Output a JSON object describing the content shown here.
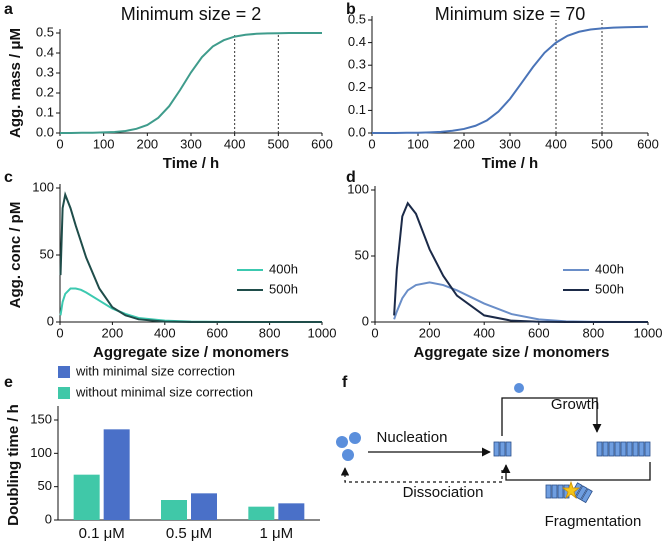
{
  "chart_data": [
    {
      "type": "line",
      "panel": "a",
      "title": "Minimum size = 2",
      "xlabel": "Time / h",
      "ylabel": "Agg. mass / μM",
      "x": [
        0,
        25,
        50,
        75,
        100,
        125,
        150,
        175,
        200,
        225,
        250,
        275,
        300,
        325,
        350,
        375,
        400,
        425,
        450,
        475,
        500,
        525,
        550,
        575,
        600
      ],
      "values": [
        0,
        0,
        0.001,
        0.001,
        0.003,
        0.005,
        0.01,
        0.021,
        0.04,
        0.076,
        0.134,
        0.215,
        0.303,
        0.379,
        0.433,
        0.464,
        0.482,
        0.491,
        0.496,
        0.498,
        0.499,
        0.5,
        0.5,
        0.5,
        0.5
      ],
      "color": "#3f9c8c",
      "xlim": [
        0,
        600
      ],
      "xticks": [
        0,
        100,
        200,
        300,
        400,
        500,
        600
      ],
      "ylim": [
        0,
        0.5
      ],
      "yticks": [
        {
          "value": 0,
          "label": "0.0"
        },
        0.1,
        0.2,
        0.3,
        0.4,
        0.5
      ],
      "vlines": [
        400,
        500
      ]
    },
    {
      "type": "line",
      "panel": "b",
      "title": "Minimum size = 70",
      "xlabel": "Time / h",
      "x": [
        0,
        25,
        50,
        75,
        100,
        125,
        150,
        175,
        200,
        225,
        250,
        275,
        300,
        325,
        350,
        375,
        400,
        425,
        450,
        475,
        500,
        525,
        550,
        575,
        600
      ],
      "values": [
        0,
        0,
        0,
        0.001,
        0.001,
        0.003,
        0.005,
        0.01,
        0.018,
        0.032,
        0.056,
        0.095,
        0.151,
        0.221,
        0.292,
        0.355,
        0.4,
        0.43,
        0.448,
        0.458,
        0.463,
        0.466,
        0.468,
        0.469,
        0.47
      ],
      "color": "#4a74b8",
      "xlim": [
        0,
        600
      ],
      "xticks": [
        0,
        100,
        200,
        300,
        400,
        500,
        600
      ],
      "ylim": [
        0,
        0.5
      ],
      "yticks": [
        {
          "value": 0,
          "label": "0.0"
        },
        0.1,
        0.2,
        0.3,
        0.4,
        0.5
      ],
      "vlines": [
        400,
        500
      ]
    },
    {
      "type": "line",
      "panel": "c",
      "xlabel": "Aggregate size / monomers",
      "ylabel": "Agg. conc / pM",
      "x": [
        2,
        10,
        20,
        40,
        60,
        80,
        100,
        150,
        200,
        250,
        300,
        400,
        500,
        600,
        800,
        1000
      ],
      "series": [
        {
          "name": "400h",
          "color": "#3cc9b0",
          "values": [
            5,
            15,
            21,
            25,
            25,
            24,
            22,
            16,
            10,
            6,
            3,
            1,
            0.3,
            0.1,
            0,
            0
          ]
        },
        {
          "name": "500h",
          "color": "#1f4d4a",
          "values": [
            35,
            85,
            95,
            85,
            72,
            60,
            48,
            25,
            11,
            5,
            2,
            0.3,
            0,
            0,
            0,
            0
          ]
        }
      ],
      "xlim": [
        0,
        1000
      ],
      "xticks": [
        0,
        200,
        400,
        600,
        800,
        1000
      ],
      "ylim": [
        0,
        100
      ],
      "yticks": [
        0,
        50,
        100
      ],
      "legend": "lower right"
    },
    {
      "type": "line",
      "panel": "d",
      "xlabel": "Aggregate size / monomers",
      "x": [
        70,
        80,
        100,
        120,
        150,
        200,
        250,
        300,
        400,
        500,
        600,
        700,
        800,
        1000
      ],
      "series": [
        {
          "name": "400h",
          "color": "#6a8ec8",
          "values": [
            2,
            8,
            18,
            24,
            28,
            30,
            28,
            24,
            14,
            6,
            2,
            0.5,
            0.1,
            0
          ]
        },
        {
          "name": "500h",
          "color": "#1b2a48",
          "values": [
            5,
            40,
            80,
            90,
            82,
            55,
            35,
            20,
            5,
            1,
            0.2,
            0,
            0,
            0
          ]
        }
      ],
      "xlim": [
        0,
        1000
      ],
      "xticks": [
        0,
        200,
        400,
        600,
        800,
        1000
      ],
      "ylim": [
        0,
        100
      ],
      "yticks": [
        0,
        50,
        100
      ],
      "legend": "lower right"
    },
    {
      "type": "bar",
      "panel": "e",
      "ylabel": "Doubling time / h",
      "categories": [
        "0.1 μM",
        "0.5 μM",
        "1 μM"
      ],
      "series": [
        {
          "name": "with minimal size correction",
          "color": "#4a70c8",
          "values": [
            136,
            40,
            25
          ]
        },
        {
          "name": "without minimal size correction",
          "color": "#40c8a8",
          "values": [
            68,
            30,
            20
          ]
        }
      ],
      "ylim": [
        0,
        165
      ],
      "yticks": [
        0,
        50,
        100,
        150
      ],
      "legend": "upper left"
    }
  ],
  "diagram": {
    "panel": "f",
    "nucleation": "Nucleation",
    "growth": "Growth",
    "dissociation": "Dissociation",
    "fragmentation": "Fragmentation"
  }
}
